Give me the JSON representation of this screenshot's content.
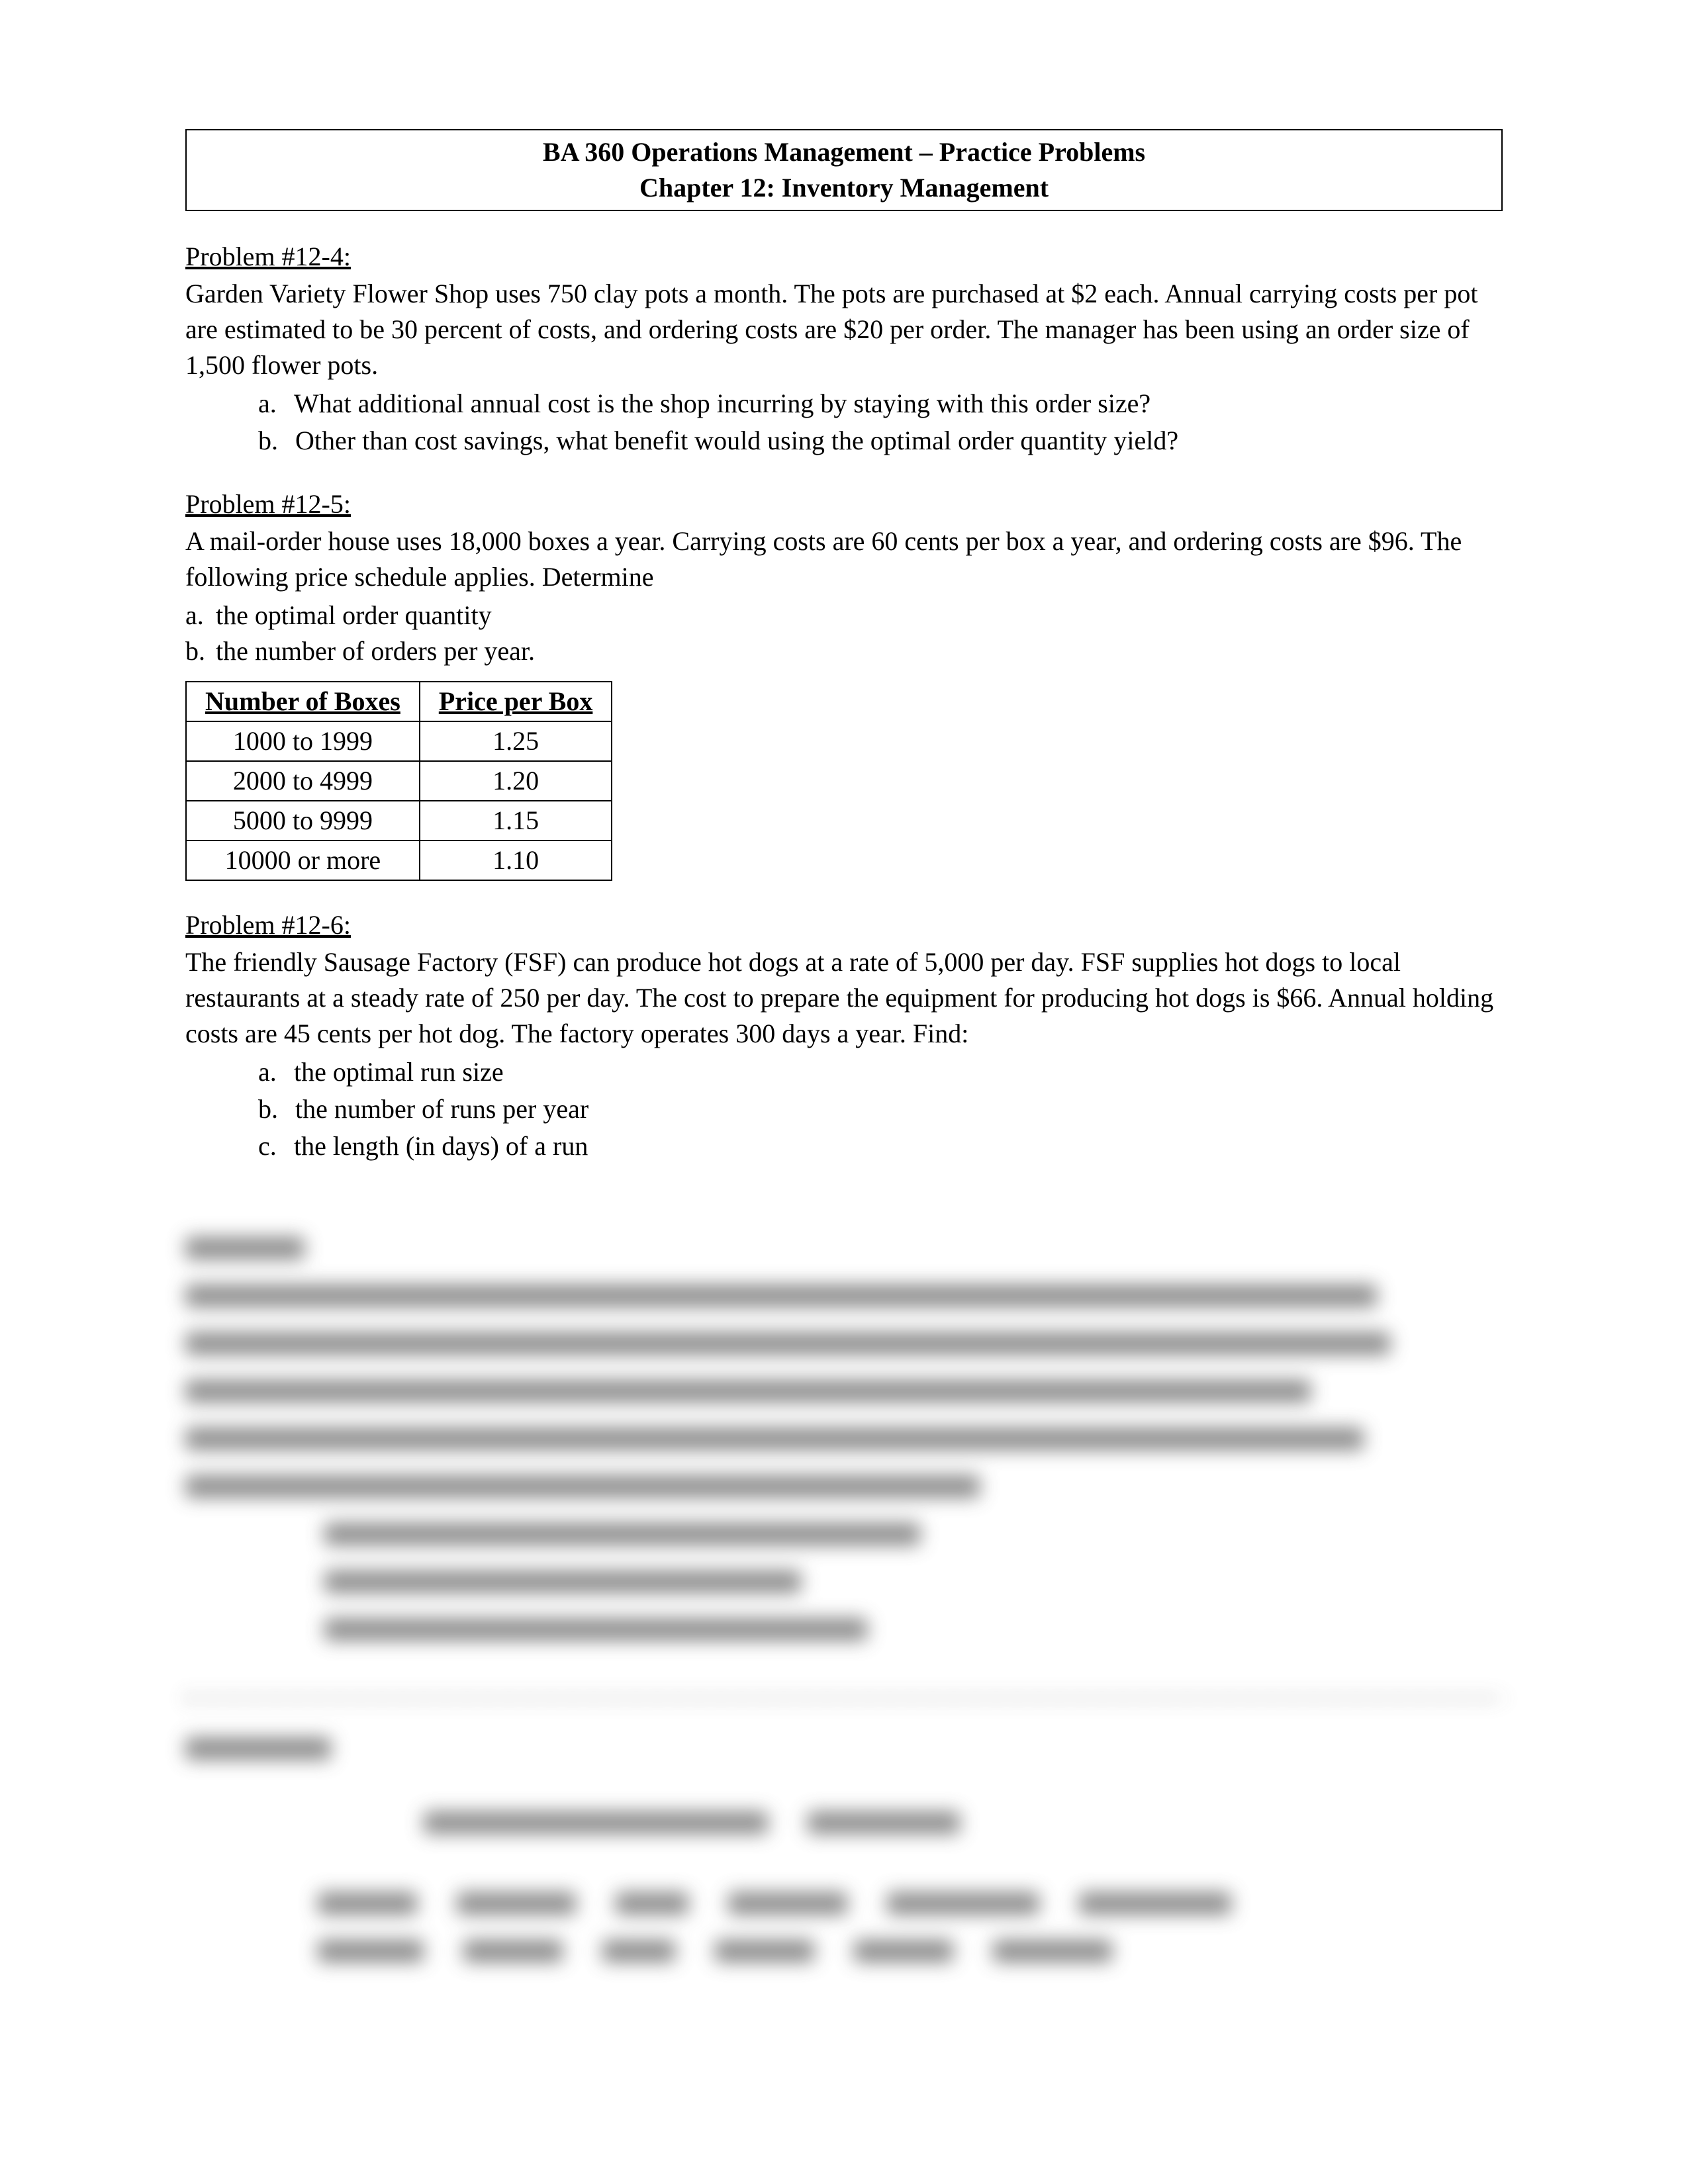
{
  "header": {
    "line1": "BA 360 Operations Management – Practice Problems",
    "line2": "Chapter 12:  Inventory Management"
  },
  "problems": {
    "p12_4": {
      "title": "Problem #12-4:",
      "body": "Garden Variety Flower Shop uses 750 clay pots a month.  The pots are purchased at $2 each.  Annual carrying costs per pot are estimated to be 30 percent of costs, and ordering costs are $20 per order.  The manager has been using an order size of 1,500 flower pots.",
      "items": [
        {
          "letter": "a.",
          "text": "What additional annual cost is the shop incurring by staying with this order size?"
        },
        {
          "letter": "b.",
          "text": "Other than cost savings, what benefit would using the optimal order quantity yield?"
        }
      ]
    },
    "p12_5": {
      "title": "Problem #12-5:",
      "body": "A mail-order house uses 18,000 boxes a year.  Carrying costs are 60 cents per box a year, and ordering costs are $96.  The following price schedule applies.  Determine",
      "items": [
        {
          "letter": "a.",
          "text": "the optimal order quantity"
        },
        {
          "letter": "b.",
          "text": "the number of orders per year."
        }
      ],
      "table": {
        "columns": [
          "Number of Boxes",
          "Price per Box"
        ],
        "rows": [
          [
            "1000 to 1999",
            "1.25"
          ],
          [
            "2000 to 4999",
            "1.20"
          ],
          [
            "5000 to 9999",
            "1.15"
          ],
          [
            "10000 or more",
            "1.10"
          ]
        ]
      }
    },
    "p12_6": {
      "title": "Problem #12-6:",
      "body": "The friendly Sausage Factory (FSF) can produce hot dogs at a rate of 5,000 per day.  FSF supplies hot dogs to local restaurants at a steady rate of 250 per day.  The cost to prepare the equipment for producing hot dogs is $66.  Annual holding costs are 45 cents per hot dog.  The factory operates 300 days a year.  Find:",
      "items": [
        {
          "letter": "a.",
          "text": "the optimal run size"
        },
        {
          "letter": "b.",
          "text": "the number of runs per year"
        },
        {
          "letter": "c.",
          "text": "the length (in days) of a run"
        }
      ]
    }
  },
  "blurred_placeholder": {
    "note": "lower portion of page is blurred / obscured in source",
    "row_widths": [
      [
        180
      ],
      [
        1800
      ],
      [
        1820
      ],
      [
        1700
      ],
      [
        1780
      ],
      [
        1200
      ],
      [
        900
      ],
      [
        720
      ],
      [
        820
      ]
    ],
    "heading_width": 220,
    "subtitle_widths": [
      520,
      230
    ],
    "table_header_widths": [
      150,
      180,
      110,
      180,
      230,
      230
    ],
    "table_sub_widths": [
      160,
      150,
      110,
      150,
      150,
      180
    ]
  }
}
